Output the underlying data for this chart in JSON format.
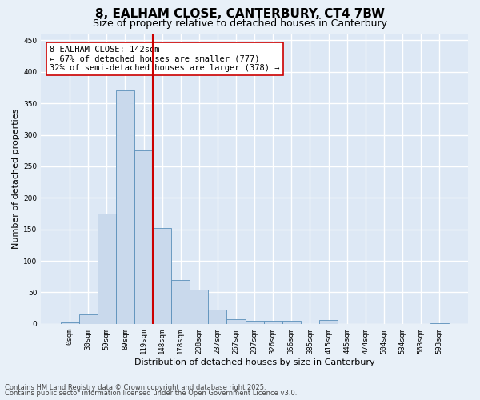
{
  "title_line1": "8, EALHAM CLOSE, CANTERBURY, CT4 7BW",
  "title_line2": "Size of property relative to detached houses in Canterbury",
  "xlabel": "Distribution of detached houses by size in Canterbury",
  "ylabel": "Number of detached properties",
  "bar_color": "#c9d9ec",
  "bar_edge_color": "#5a8fba",
  "background_color": "#dde8f5",
  "fig_background_color": "#e8f0f8",
  "grid_color": "#ffffff",
  "categories": [
    "0sqm",
    "30sqm",
    "59sqm",
    "89sqm",
    "119sqm",
    "148sqm",
    "178sqm",
    "208sqm",
    "237sqm",
    "267sqm",
    "297sqm",
    "326sqm",
    "356sqm",
    "385sqm",
    "415sqm",
    "445sqm",
    "474sqm",
    "504sqm",
    "534sqm",
    "563sqm",
    "593sqm"
  ],
  "bar_heights": [
    2,
    15,
    175,
    370,
    275,
    152,
    70,
    55,
    23,
    8,
    5,
    5,
    5,
    0,
    6,
    0,
    0,
    0,
    0,
    0,
    1
  ],
  "vline_color": "#cc0000",
  "vline_pos": 4.5,
  "annotation_text": "8 EALHAM CLOSE: 142sqm\n← 67% of detached houses are smaller (777)\n32% of semi-detached houses are larger (378) →",
  "annotation_box_color": "#ffffff",
  "annotation_box_edge": "#cc0000",
  "ylim": [
    0,
    460
  ],
  "yticks": [
    0,
    50,
    100,
    150,
    200,
    250,
    300,
    350,
    400,
    450
  ],
  "footer_line1": "Contains HM Land Registry data © Crown copyright and database right 2025.",
  "footer_line2": "Contains public sector information licensed under the Open Government Licence v3.0.",
  "title_fontsize": 11,
  "subtitle_fontsize": 9,
  "axis_label_fontsize": 8,
  "tick_fontsize": 6.5,
  "annotation_fontsize": 7.5,
  "footer_fontsize": 6
}
